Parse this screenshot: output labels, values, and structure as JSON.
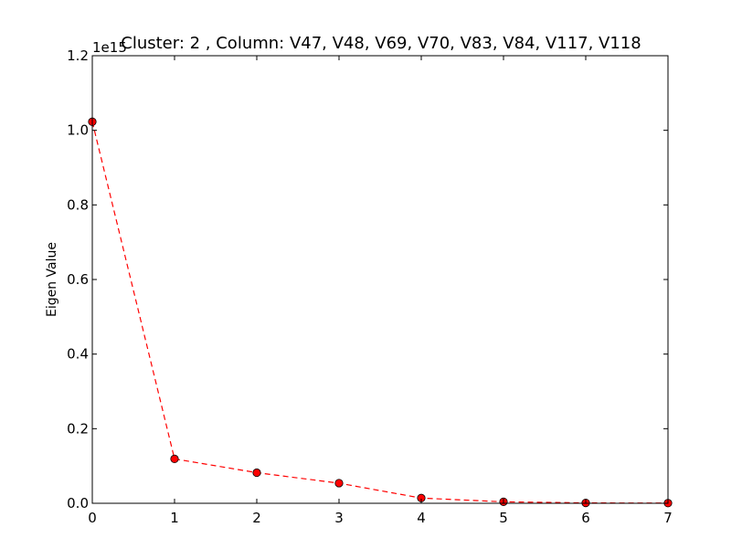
{
  "chart_data": {
    "type": "line",
    "title": "Cluster: 2 , Column: V47, V48, V69, V70, V83, V84, V117, V118",
    "xlabel": "",
    "ylabel": "Eigen Value",
    "y_offset_label": "1e15",
    "xlim": [
      0,
      7
    ],
    "ylim": [
      0,
      1.2
    ],
    "x_ticks": [
      0,
      1,
      2,
      3,
      4,
      5,
      6,
      7
    ],
    "x_tick_labels": [
      "0",
      "1",
      "2",
      "3",
      "4",
      "5",
      "6",
      "7"
    ],
    "y_ticks": [
      0,
      0.2,
      0.4,
      0.6,
      0.8,
      1.0,
      1.2
    ],
    "y_tick_labels": [
      "0.0",
      "0.2",
      "0.4",
      "0.6",
      "0.8",
      "1.0",
      "1.2"
    ],
    "grid": false,
    "legend": "none",
    "series": [
      {
        "x": [
          0,
          1,
          2,
          3,
          4,
          5,
          6,
          7
        ],
        "values": [
          1.023,
          0.119,
          0.082,
          0.054,
          0.014,
          0.004,
          0.001,
          0.0005
        ],
        "color": "#ff0000",
        "line_style": "dashed",
        "marker": "circle"
      }
    ]
  }
}
